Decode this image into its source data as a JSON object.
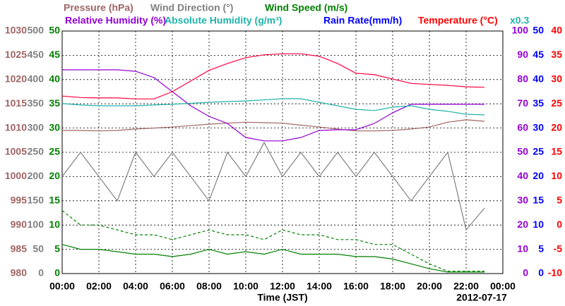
{
  "chart_data": {
    "type": "line",
    "x": [
      0,
      1,
      2,
      3,
      4,
      5,
      6,
      7,
      8,
      9,
      10,
      11,
      12,
      13,
      14,
      15,
      16,
      17,
      18,
      19,
      20,
      21,
      22,
      23
    ],
    "xlim": [
      0,
      24
    ],
    "xticks": [
      {
        "value": 0,
        "label": "00:00"
      },
      {
        "value": 2,
        "label": "02:00"
      },
      {
        "value": 4,
        "label": "04:00"
      },
      {
        "value": 6,
        "label": "06:00"
      },
      {
        "value": 8,
        "label": "08:00"
      },
      {
        "value": 10,
        "label": "10:00"
      },
      {
        "value": 12,
        "label": "12:00"
      },
      {
        "value": 14,
        "label": "14:00"
      },
      {
        "value": 16,
        "label": "16:00"
      },
      {
        "value": 18,
        "label": "18:00"
      },
      {
        "value": 20,
        "label": "20:00"
      },
      {
        "value": 22,
        "label": "22:00"
      },
      {
        "value": 24,
        "label": "00:00"
      }
    ],
    "xlabel": "Time (JST)",
    "date": "2012-07-17",
    "grid": true,
    "axes": [
      {
        "label": "Pressure (hPa)",
        "color": "#a06464",
        "side": "left",
        "lim": [
          980,
          1030
        ],
        "ticks": [
          980,
          985,
          990,
          995,
          1000,
          1005,
          1010,
          1015,
          1020,
          1025,
          1030
        ]
      },
      {
        "label": "Wind Direction (°)",
        "color": "#808080",
        "side": "left",
        "lim": [
          0,
          500
        ],
        "ticks": [
          0,
          50,
          100,
          150,
          200,
          250,
          300,
          350,
          400,
          450,
          500
        ]
      },
      {
        "label": "Wind Speed (m/s)",
        "color": "#008000",
        "side": "left",
        "lim": [
          0,
          50
        ],
        "ticks": [
          0,
          5,
          10,
          15,
          20,
          25,
          30,
          35,
          40,
          45,
          50
        ]
      },
      {
        "label": "Relative Humidity (%)",
        "color": "#9400d3",
        "side": "right",
        "lim": [
          0,
          100
        ],
        "ticks": [
          0,
          10,
          20,
          30,
          40,
          50,
          60,
          70,
          80,
          90,
          100
        ]
      },
      {
        "label": "Rain Rate(mm/h)",
        "color": "#0000ff",
        "side": "right",
        "lim": [
          0,
          50
        ],
        "ticks": [
          0,
          5,
          10,
          15,
          20,
          25,
          30,
          35,
          40,
          45,
          50
        ]
      },
      {
        "label": "Temperature (°C)",
        "color": "#ff0000",
        "side": "right",
        "lim": [
          -10,
          40
        ],
        "ticks": [
          -10,
          -5,
          0,
          5,
          10,
          15,
          20,
          25,
          30,
          35,
          40
        ]
      }
    ],
    "extra_labels": [
      {
        "text": "Absolute Humidity (g/m³)",
        "color": "#20b2aa"
      },
      {
        "text": "x0.3",
        "color": "#20b2aa"
      }
    ],
    "series": [
      {
        "name": "Pressure (hPa)",
        "color": "#a06464",
        "axis": 0,
        "values": [
          1009.5,
          1009.5,
          1009.4,
          1009.5,
          1009.8,
          1010.0,
          1010.2,
          1010.5,
          1010.8,
          1011.0,
          1011.2,
          1011.1,
          1011.0,
          1010.6,
          1010.2,
          1009.8,
          1009.4,
          1009.4,
          1009.5,
          1009.8,
          1010.2,
          1011.2,
          1011.7,
          1011.4
        ]
      },
      {
        "name": "Wind Direction (°)",
        "color": "#808080",
        "axis": 1,
        "values": [
          200,
          250,
          200,
          150,
          250,
          200,
          250,
          200,
          150,
          250,
          200,
          270,
          200,
          250,
          200,
          250,
          200,
          250,
          200,
          150,
          200,
          250,
          90,
          135
        ]
      },
      {
        "name": "Wind Speed (m/s)",
        "color": "#008000",
        "axis": 2,
        "values": [
          6,
          5,
          5,
          4.5,
          4,
          4,
          3.5,
          4,
          5,
          4,
          4.5,
          4,
          5,
          4,
          4,
          4,
          3.5,
          3.5,
          3,
          2,
          1,
          0.3,
          0.3,
          0.3
        ]
      },
      {
        "color": "#008000",
        "axis": 2,
        "dashed": true,
        "values": [
          13,
          10,
          10,
          9,
          8,
          8,
          7,
          8,
          9,
          8,
          8,
          7,
          9,
          8,
          8,
          7,
          7,
          6,
          6,
          4,
          2,
          0.5,
          0.5,
          0.5
        ]
      },
      {
        "name": "Relative Humidity (%)",
        "color": "#9400d3",
        "axis": 3,
        "values": [
          84.0,
          84.0,
          84.0,
          84.0,
          83.4,
          80.8,
          75.0,
          69.2,
          64.8,
          61.9,
          56.1,
          54.7,
          54.7,
          56.1,
          59.0,
          59.3,
          59.3,
          61.9,
          66.3,
          69.8,
          69.8,
          69.8,
          69.8,
          69.8
        ]
      },
      {
        "name": "Absolute Humidity (g/m³)",
        "color": "#20b2aa",
        "axis": 3,
        "values": [
          70.1,
          69.5,
          69.2,
          69.2,
          69.2,
          69.5,
          69.8,
          70.2,
          70.6,
          70.9,
          71.2,
          71.6,
          72.1,
          72.1,
          70.6,
          69.2,
          67.7,
          67.2,
          68.6,
          69.2,
          67.7,
          66.9,
          65.7,
          65.4
        ]
      },
      {
        "name": "Temperature (°C)",
        "color": "#ff0040",
        "axis": 5,
        "values": [
          26.6,
          26.3,
          26.2,
          26.2,
          26.0,
          26.0,
          27.5,
          29.7,
          31.9,
          33.3,
          34.5,
          35.1,
          35.3,
          35.3,
          34.8,
          33.3,
          31.3,
          31.0,
          30.1,
          29.2,
          29.0,
          28.8,
          28.5,
          28.4
        ]
      }
    ]
  }
}
